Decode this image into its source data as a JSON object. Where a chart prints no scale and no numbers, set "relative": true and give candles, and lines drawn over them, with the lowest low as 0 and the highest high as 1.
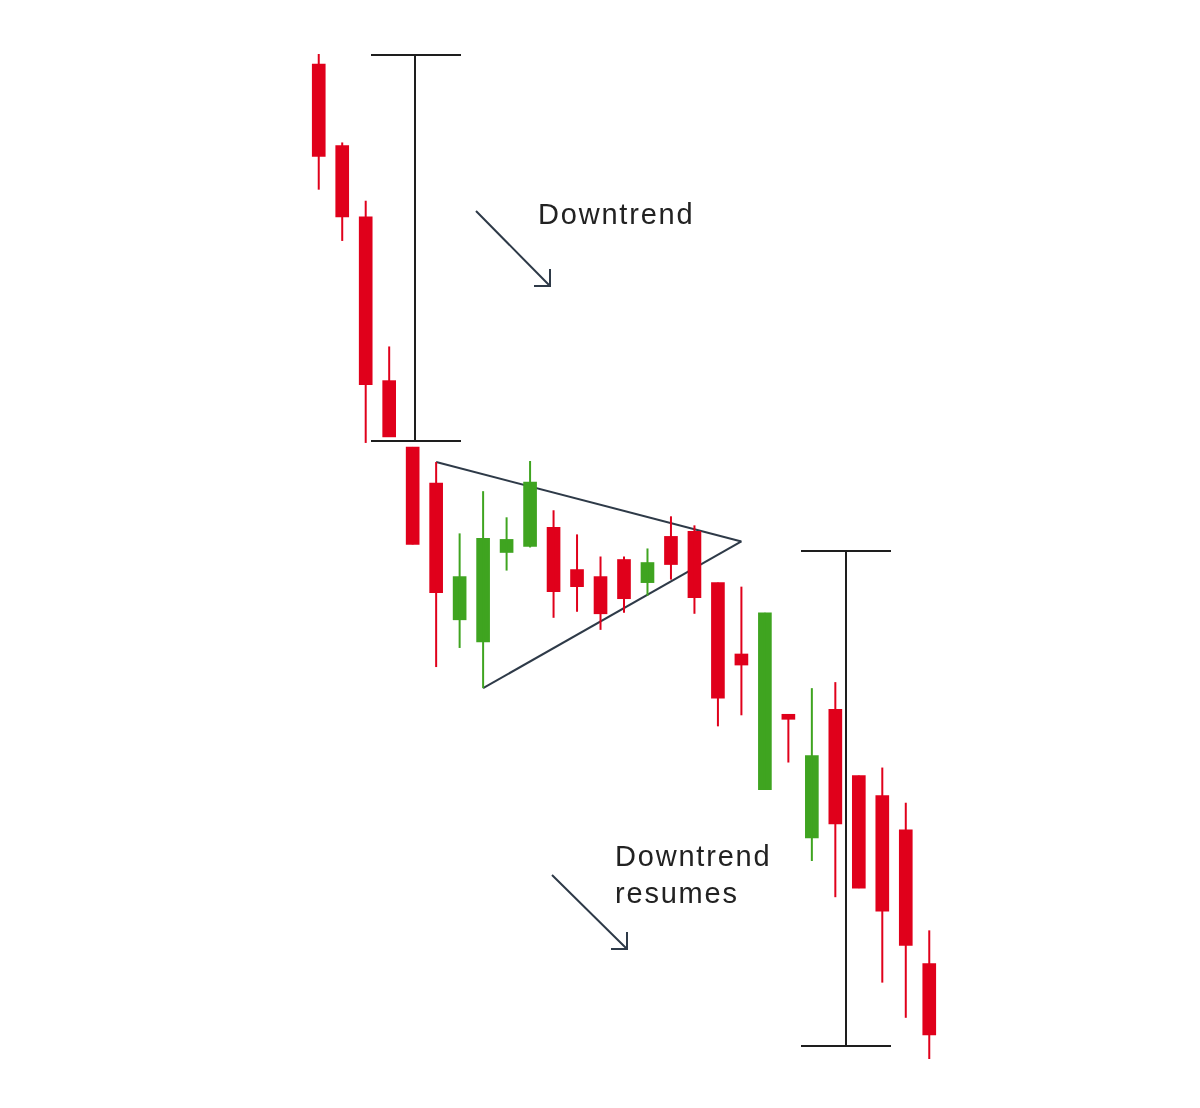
{
  "chart_data": {
    "type": "candlestick",
    "relative": true,
    "tick_labels": false,
    "categories": [
      null,
      null,
      null,
      null,
      null,
      null,
      null,
      null,
      null,
      null,
      null,
      null,
      null,
      null,
      null,
      null,
      null,
      null,
      null,
      null,
      null,
      null,
      null,
      null,
      null,
      null,
      null
    ],
    "ohlc": [
      [
        0.99,
        1.0,
        0.865,
        0.898
      ],
      [
        0.909,
        0.912,
        0.814,
        0.838
      ],
      [
        0.838,
        0.854,
        0.613,
        0.671
      ],
      [
        0.675,
        0.709,
        0.619,
        0.619
      ],
      [
        0.609,
        0.609,
        0.512,
        0.512
      ],
      [
        0.573,
        0.594,
        0.39,
        0.464
      ],
      [
        0.437,
        0.523,
        0.409,
        0.48
      ],
      [
        0.415,
        0.565,
        0.369,
        0.518
      ],
      [
        0.504,
        0.539,
        0.486,
        0.517
      ],
      [
        0.51,
        0.595,
        0.509,
        0.574
      ],
      [
        0.529,
        0.546,
        0.439,
        0.465
      ],
      [
        0.487,
        0.522,
        0.445,
        0.47
      ],
      [
        0.48,
        0.5,
        0.427,
        0.443
      ],
      [
        0.497,
        0.5,
        0.444,
        0.458
      ],
      [
        0.474,
        0.508,
        0.461,
        0.494
      ],
      [
        0.52,
        0.54,
        0.477,
        0.492
      ],
      [
        0.525,
        0.531,
        0.443,
        0.459
      ],
      [
        0.474,
        0.474,
        0.331,
        0.359
      ],
      [
        0.403,
        0.47,
        0.342,
        0.392
      ],
      [
        0.268,
        0.444,
        0.268,
        0.444
      ],
      [
        0.343,
        0.343,
        0.295,
        0.338
      ],
      [
        0.22,
        0.369,
        0.197,
        0.302
      ],
      [
        0.348,
        0.375,
        0.161,
        0.234
      ],
      [
        0.282,
        0.282,
        0.17,
        0.17
      ],
      [
        0.262,
        0.29,
        0.076,
        0.147
      ],
      [
        0.228,
        0.255,
        0.041,
        0.113
      ],
      [
        0.095,
        0.128,
        0.0,
        0.024
      ]
    ],
    "colors": [
      "#e0001b",
      "#e0001b",
      "#e0001b",
      "#e0001b",
      "#e0001b",
      "#e0001b",
      "#3fa420",
      "#3fa420",
      "#3fa420",
      "#3fa420",
      "#e0001b",
      "#e0001b",
      "#e0001b",
      "#e0001b",
      "#3fa420",
      "#e0001b",
      "#e0001b",
      "#e0001b",
      "#e0001b",
      "#3fa420",
      "#e0001b",
      "#3fa420",
      "#e0001b",
      "#e0001b",
      "#e0001b",
      "#e0001b",
      "#e0001b"
    ],
    "series": [
      {
        "type": "line",
        "color": "#2e3a48",
        "values": [
          null,
          null,
          null,
          null,
          null,
          0.594,
          null,
          null,
          null,
          null,
          null,
          null,
          null,
          null,
          null,
          null,
          null,
          null,
          0.515,
          null,
          null,
          null,
          null,
          null,
          null,
          null,
          null
        ]
      },
      {
        "type": "line",
        "color": "#2e3a48",
        "values": [
          null,
          null,
          null,
          null,
          null,
          null,
          null,
          0.369,
          null,
          null,
          null,
          null,
          null,
          null,
          null,
          null,
          null,
          null,
          0.515,
          null,
          null,
          null,
          null,
          null,
          null,
          null,
          null
        ]
      }
    ],
    "annotations": [
      "Downtrend",
      "Downtrend resumes"
    ]
  }
}
